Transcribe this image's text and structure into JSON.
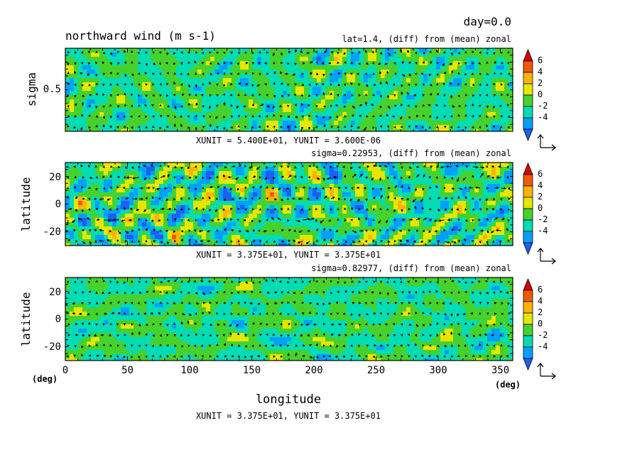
{
  "chart_data": [
    {
      "type": "heatmap",
      "panel": "top",
      "title": "northward wind (m s-1)",
      "subtitle": "lat=1.4, (diff) from (mean) zonal",
      "xlabel": "",
      "ylabel": "sigma",
      "xlim": [
        0,
        360
      ],
      "ylim": [
        0,
        1
      ],
      "y_ticks": [
        0.5
      ],
      "y_tick_labels": [
        "0.5"
      ],
      "vector_unit": "XUNIT = 5.400E+01, YUNIT = 3.600E-06"
    },
    {
      "type": "heatmap",
      "panel": "middle",
      "subtitle": "sigma=0.22953, (diff) from (mean) zonal",
      "xlabel": "",
      "ylabel": "latitude",
      "xlim": [
        0,
        360
      ],
      "ylim": [
        -30,
        30
      ],
      "y_ticks": [
        20,
        0,
        -20
      ],
      "y_tick_labels": [
        "20",
        "0",
        "-20"
      ],
      "vector_unit": "XUNIT = 3.375E+01, YUNIT = 3.375E+01"
    },
    {
      "type": "heatmap",
      "panel": "bottom",
      "subtitle": "sigma=0.82977, (diff) from (mean) zonal",
      "xlabel": "longitude",
      "ylabel": "latitude",
      "xlim": [
        0,
        360
      ],
      "ylim": [
        -30,
        30
      ],
      "x_ticks": [
        0,
        50,
        100,
        150,
        200,
        250,
        300,
        350
      ],
      "x_tick_labels": [
        "0",
        "50",
        "100",
        "150",
        "200",
        "250",
        "300",
        "350"
      ],
      "y_ticks": [
        20,
        0,
        -20
      ],
      "y_tick_labels": [
        "20",
        "0",
        "-20"
      ],
      "x_unit_label": "(deg)",
      "y_unit_label": "(deg)",
      "vector_unit": "XUNIT = 3.375E+01, YUNIT = 3.375E+01"
    }
  ],
  "header": {
    "day_label": "day=0.0"
  },
  "colorbar": {
    "levels": [
      -4,
      -2,
      0,
      2,
      4,
      6
    ],
    "labels": [
      "6",
      "4",
      "2",
      "0",
      "-2",
      "-4"
    ],
    "colors": [
      "#1e5ff0",
      "#00a0ff",
      "#00dcb4",
      "#46d22d",
      "#e6e600",
      "#ffb400",
      "#f05a00",
      "#dc0000"
    ]
  }
}
